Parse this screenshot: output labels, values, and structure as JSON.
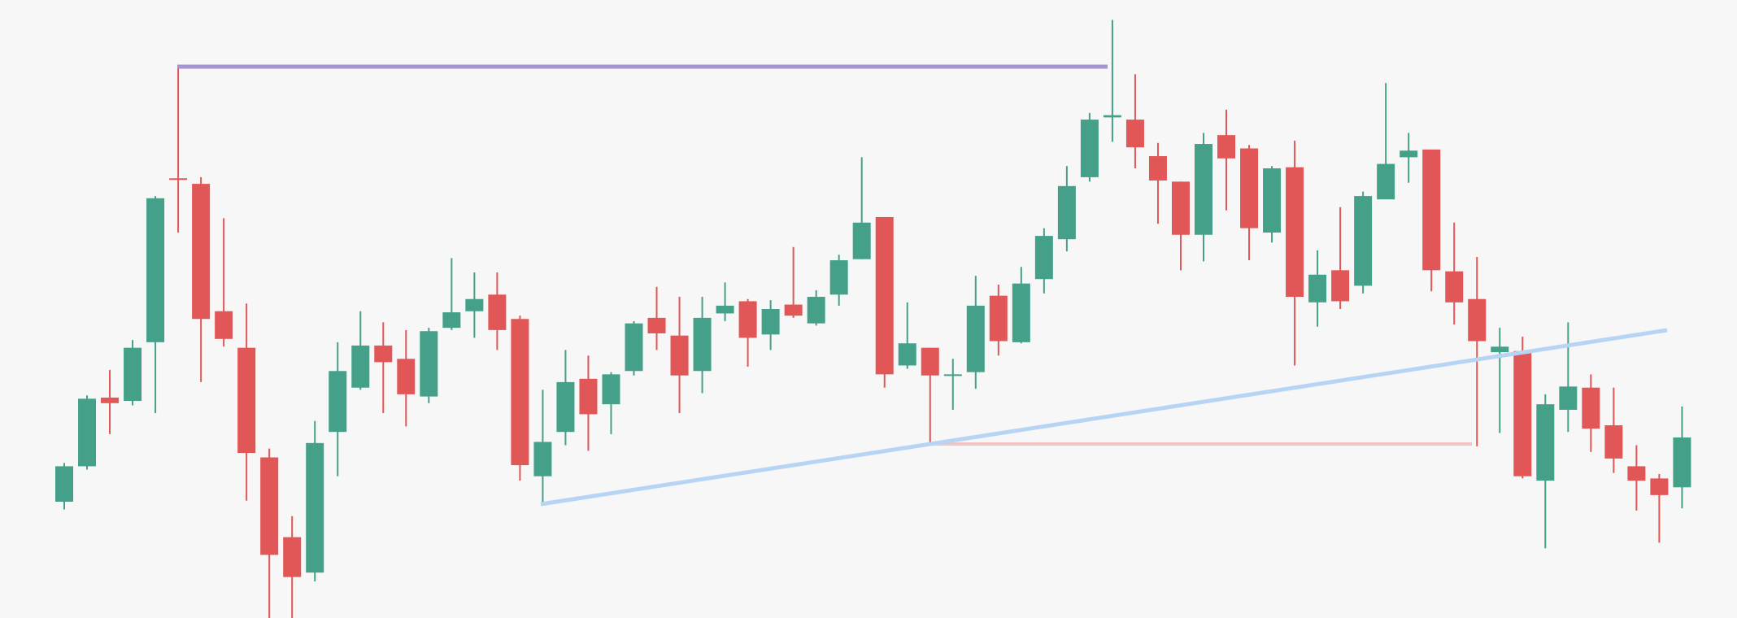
{
  "chart_data": {
    "type": "candlestick",
    "open": [
      105,
      137,
      199,
      196,
      249,
      397,
      392,
      277,
      244,
      145,
      73,
      41,
      168,
      208,
      246,
      234,
      200,
      262,
      277,
      292,
      270,
      128,
      168,
      216,
      193,
      223,
      271,
      255,
      223,
      275,
      286,
      256,
      283,
      266,
      292,
      324,
      362,
      228,
      244,
      219,
      222,
      291,
      249,
      306,
      342,
      398,
      452,
      450,
      417,
      394,
      346,
      436,
      424,
      348,
      407,
      285,
      314,
      300,
      378,
      416,
      423,
      313,
      288,
      240,
      241,
      124,
      188,
      208,
      174,
      137,
      126,
      118
    ],
    "high": [
      140,
      201,
      224,
      251,
      381,
      498,
      398,
      361,
      284,
      153,
      92,
      178,
      249,
      277,
      267,
      260,
      262,
      325,
      312,
      312,
      273,
      206,
      242,
      237,
      222,
      268,
      299,
      290,
      290,
      303,
      288,
      287,
      335,
      296,
      328,
      416,
      362,
      285,
      244,
      234,
      309,
      301,
      317,
      352,
      408,
      456,
      540,
      491,
      429,
      394,
      438,
      459,
      427,
      408,
      431,
      332,
      371,
      385,
      483,
      438,
      423,
      357,
      326,
      262,
      254,
      202,
      267,
      220,
      208,
      156,
      130,
      191
    ],
    "low": [
      98,
      134,
      166,
      192,
      185,
      348,
      213,
      245,
      106,
      0,
      0,
      33,
      128,
      206,
      185,
      173,
      194,
      260,
      253,
      242,
      124,
      103,
      156,
      151,
      166,
      219,
      242,
      185,
      203,
      268,
      227,
      242,
      271,
      264,
      282,
      324,
      208,
      225,
      157,
      188,
      207,
      237,
      248,
      293,
      331,
      394,
      430,
      406,
      356,
      314,
      322,
      368,
      323,
      339,
      228,
      263,
      279,
      293,
      378,
      393,
      295,
      265,
      155,
      167,
      126,
      63,
      168,
      150,
      131,
      97,
      68,
      99
    ],
    "close": [
      137,
      198,
      194,
      244,
      379,
      396,
      270,
      252,
      149,
      57,
      37,
      158,
      223,
      246,
      231,
      202,
      259,
      276,
      288,
      260,
      138,
      159,
      213,
      184,
      220,
      266,
      257,
      219,
      271,
      282,
      253,
      279,
      273,
      290,
      323,
      357,
      220,
      248,
      219,
      220,
      282,
      250,
      302,
      345,
      390,
      450,
      454,
      425,
      395,
      346,
      428,
      415,
      352,
      406,
      290,
      310,
      286,
      381,
      410,
      422,
      314,
      285,
      250,
      245,
      128,
      193,
      209,
      171,
      144,
      124,
      111,
      163
    ],
    "up_color": "#45a08a",
    "down_color": "#e15656",
    "ylim": [
      0,
      558
    ]
  }
}
